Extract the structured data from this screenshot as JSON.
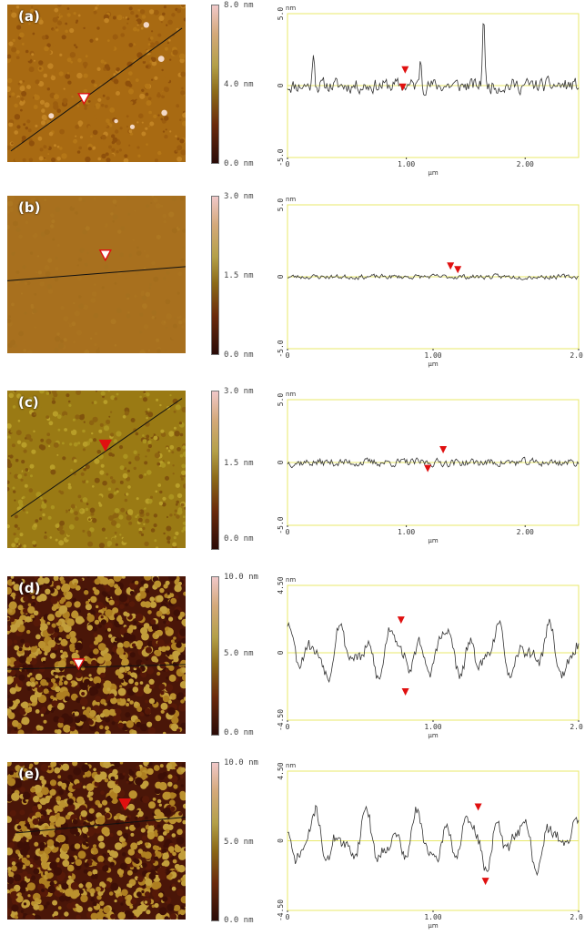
{
  "colors": {
    "frame": "#e8e86a",
    "zero_line": "#e8e86a",
    "trace": "#333333",
    "marker": "#e01010",
    "scale_top": "#f0c8c8",
    "scale_mid": "#b4a048",
    "scale_bottom": "#2a0b07"
  },
  "panels": [
    {
      "label": "(a)",
      "scale": {
        "top": "8.0 nm",
        "mid": "4.0 nm",
        "bottom": "0.0 nm"
      },
      "texture": "granular",
      "brightness": 0.95,
      "scan_line": [
        [
          0.02,
          0.93
        ],
        [
          0.98,
          0.15
        ]
      ],
      "tip_marker": [
        0.43,
        0.6
      ],
      "chart_data": {
        "type": "line",
        "xlabel": "µm",
        "ylabel": "nm",
        "y_unit_label": "nm",
        "ylim": [
          -5.0,
          5.0
        ],
        "yticks": [
          "5.0",
          "0",
          "-5.0"
        ],
        "xlim": [
          0,
          2.45
        ],
        "xticks": [
          {
            "v": 0,
            "t": "0"
          },
          {
            "v": 1.0,
            "t": "1.00"
          },
          {
            "v": 2.0,
            "t": "2.00"
          }
        ],
        "amplitude": 0.55,
        "seed": 11,
        "spikes": [
          [
            0.22,
            2.5
          ],
          [
            1.12,
            2.0
          ],
          [
            1.65,
            5.2
          ]
        ],
        "markers": [
          {
            "x": 0.99,
            "y": 0.9,
            "dir": "down"
          },
          {
            "x": 0.97,
            "y": -0.3,
            "dir": "down"
          }
        ]
      }
    },
    {
      "label": "(b)",
      "scale": {
        "top": "3.0 nm",
        "mid": "1.5 nm",
        "bottom": "0.0 nm"
      },
      "texture": "smooth",
      "brightness": 1.0,
      "scan_line": [
        [
          0.0,
          0.54
        ],
        [
          1.0,
          0.45
        ]
      ],
      "tip_marker": [
        0.55,
        0.38
      ],
      "chart_data": {
        "type": "line",
        "xlabel": "µm",
        "ylabel": "nm",
        "y_unit_label": "nm",
        "ylim": [
          -5.0,
          5.0
        ],
        "yticks": [
          "5.0",
          "0",
          "-5.0"
        ],
        "xlim": [
          0,
          2.0
        ],
        "xticks": [
          {
            "v": 0,
            "t": "0"
          },
          {
            "v": 1.0,
            "t": "1.00"
          },
          {
            "v": 2.0,
            "t": "2.00"
          }
        ],
        "amplitude": 0.18,
        "seed": 23,
        "spikes": [],
        "markers": [
          {
            "x": 1.12,
            "y": 0.55,
            "dir": "down"
          },
          {
            "x": 1.17,
            "y": 0.3,
            "dir": "down"
          }
        ]
      }
    },
    {
      "label": "(c)",
      "scale": {
        "top": "3.0 nm",
        "mid": "1.5 nm",
        "bottom": "0.0 nm"
      },
      "texture": "mottled",
      "brightness": 1.05,
      "scan_line": [
        [
          0.02,
          0.8
        ],
        [
          0.98,
          0.05
        ]
      ],
      "tip_marker": [
        0.55,
        0.35
      ],
      "chart_data": {
        "type": "line",
        "xlabel": "µm",
        "ylabel": "nm",
        "y_unit_label": "nm",
        "ylim": [
          -5.0,
          5.0
        ],
        "yticks": [
          "5.0",
          "0",
          "-5.0"
        ],
        "xlim": [
          0,
          2.45
        ],
        "xticks": [
          {
            "v": 0,
            "t": "0"
          },
          {
            "v": 1.0,
            "t": "1.00"
          },
          {
            "v": 2.0,
            "t": "2.00"
          }
        ],
        "amplitude": 0.35,
        "seed": 37,
        "spikes": [],
        "markers": [
          {
            "x": 1.18,
            "y": -0.7,
            "dir": "down"
          },
          {
            "x": 1.31,
            "y": 0.8,
            "dir": "down"
          }
        ]
      }
    },
    {
      "label": "(d)",
      "scale": {
        "top": "10.0 nm",
        "mid": "5.0 nm",
        "bottom": "0.0 nm"
      },
      "texture": "maze",
      "brightness": 1.0,
      "scan_line": [
        [
          0.0,
          0.59
        ],
        [
          1.0,
          0.56
        ]
      ],
      "tip_marker": [
        0.4,
        0.56
      ],
      "chart_data": {
        "type": "line",
        "xlabel": "µm",
        "ylabel": "nm",
        "y_unit_label": "nm",
        "ylim": [
          -4.5,
          4.5
        ],
        "yticks": [
          "4.50",
          "0",
          "-4.50"
        ],
        "xlim": [
          0,
          2.0
        ],
        "xticks": [
          {
            "v": 0,
            "t": "0"
          },
          {
            "v": 1.0,
            "t": "1.00"
          },
          {
            "v": 2.0,
            "t": "2.00"
          }
        ],
        "amplitude": 1.9,
        "seed": 53,
        "spikes": [],
        "markers": [
          {
            "x": 0.78,
            "y": 2.0,
            "dir": "down"
          },
          {
            "x": 0.81,
            "y": -2.8,
            "dir": "down"
          }
        ]
      }
    },
    {
      "label": "(e)",
      "scale": {
        "top": "10.0 nm",
        "mid": "5.0 nm",
        "bottom": "0.0 nm"
      },
      "texture": "maze",
      "brightness": 1.08,
      "scan_line": [
        [
          0.05,
          0.45
        ],
        [
          1.0,
          0.35
        ]
      ],
      "tip_marker": [
        0.66,
        0.27
      ],
      "chart_data": {
        "type": "line",
        "xlabel": "µm",
        "ylabel": "nm",
        "y_unit_label": "nm",
        "ylim": [
          -4.5,
          4.5
        ],
        "yticks": [
          "4.50",
          "0",
          "-4.50"
        ],
        "xlim": [
          0,
          2.0
        ],
        "xticks": [
          {
            "v": 0,
            "t": "0"
          },
          {
            "v": 1.0,
            "t": "1.00"
          },
          {
            "v": 2.0,
            "t": "2.00"
          }
        ],
        "amplitude": 1.9,
        "seed": 71,
        "spikes": [],
        "markers": [
          {
            "x": 1.31,
            "y": 2.0,
            "dir": "down"
          },
          {
            "x": 1.36,
            "y": -2.8,
            "dir": "down"
          }
        ]
      }
    }
  ]
}
